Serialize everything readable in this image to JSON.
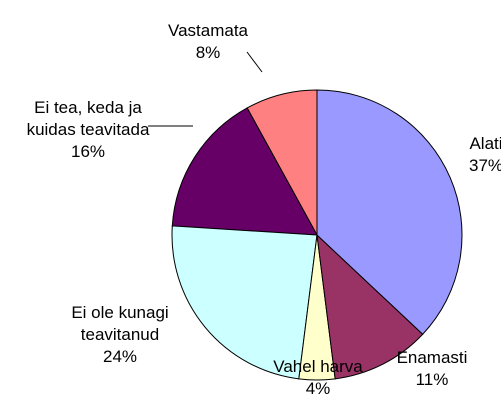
{
  "chart_data": {
    "type": "pie",
    "categories": [
      "Alati",
      "Enamasti",
      "Vahel harva",
      "Ei ole kunagi\nteavitanud",
      "Ei tea, keda ja\nkuidas teavitada",
      "Vastamata"
    ],
    "values": [
      37,
      11,
      4,
      24,
      16,
      8
    ],
    "value_labels": [
      "37%",
      "11%",
      "4%",
      "24%",
      "16%",
      "8%"
    ],
    "colors": [
      "#9999ff",
      "#993366",
      "#ffffcc",
      "#ccffff",
      "#660066",
      "#ff8080"
    ]
  }
}
